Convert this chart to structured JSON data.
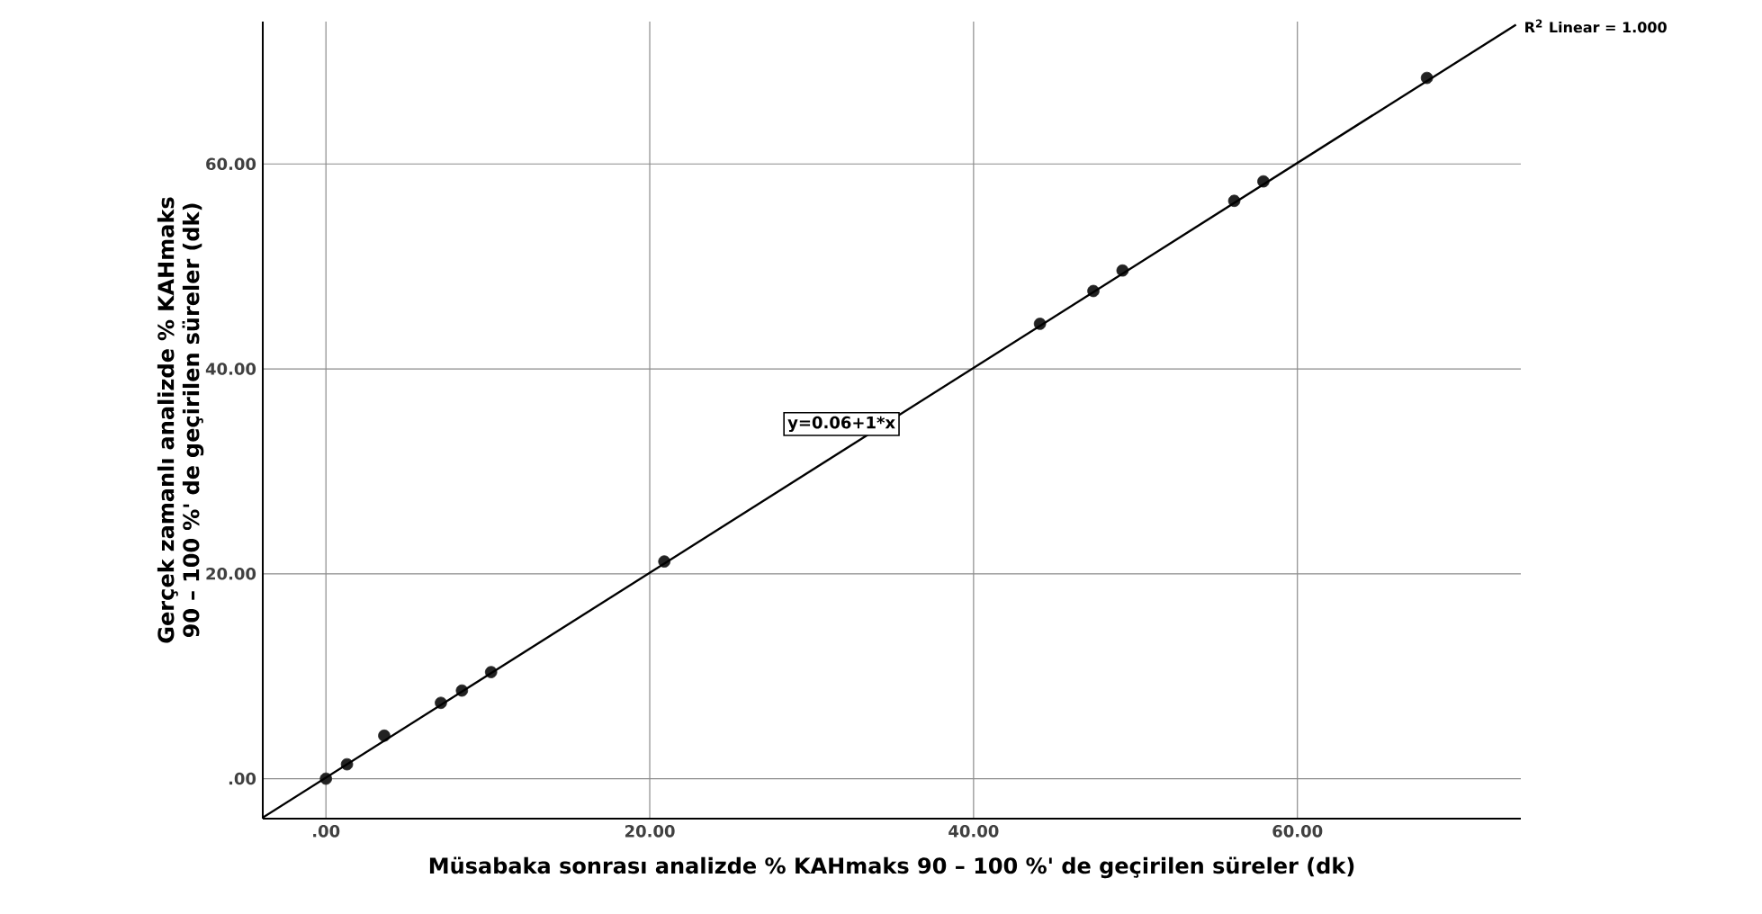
{
  "chart_data": {
    "type": "scatter",
    "xlabel": "Müsabaka sonrası analizde % KAHmaks 90 – 100 %' de geçirilen süreler (dk)",
    "ylabel": "Gerçek zamanlı analizde % KAHmaks 90 – 100 %' de geçirilen süreler (dk)",
    "xlim": [
      -3.9,
      73.8
    ],
    "ylim": [
      -3.9,
      73.9
    ],
    "xticks": [
      {
        "value": 0,
        "label": ".00"
      },
      {
        "value": 20,
        "label": "20.00"
      },
      {
        "value": 40,
        "label": "40.00"
      },
      {
        "value": 60,
        "label": "60.00"
      }
    ],
    "yticks": [
      {
        "value": 0,
        "label": ".00"
      },
      {
        "value": 20,
        "label": "20.00"
      },
      {
        "value": 40,
        "label": "40.00"
      },
      {
        "value": 60,
        "label": "60.00"
      }
    ],
    "grid": true,
    "marker": "circle",
    "series": [
      {
        "color": "#222222",
        "x": [
          0,
          1.3,
          3.6,
          7.1,
          8.4,
          10.2,
          20.9,
          44.1,
          47.4,
          49.2,
          56.1,
          57.9,
          68.0
        ],
        "values": [
          0,
          1.4,
          4.2,
          7.4,
          8.6,
          10.4,
          21.2,
          44.4,
          47.6,
          49.6,
          56.4,
          58.3,
          68.4
        ]
      },
      {
        "type": "line",
        "color": "#000000",
        "marker": "none",
        "line_style": "solid",
        "x": [
          -3.9,
          73.5
        ],
        "values": [
          -3.8,
          73.6
        ]
      }
    ],
    "annotations": [
      {
        "text": "R$^{2}$ Linear = 1.000",
        "x": 73.5,
        "y": 73.6
      },
      "y=0.06+1*x"
    ]
  }
}
